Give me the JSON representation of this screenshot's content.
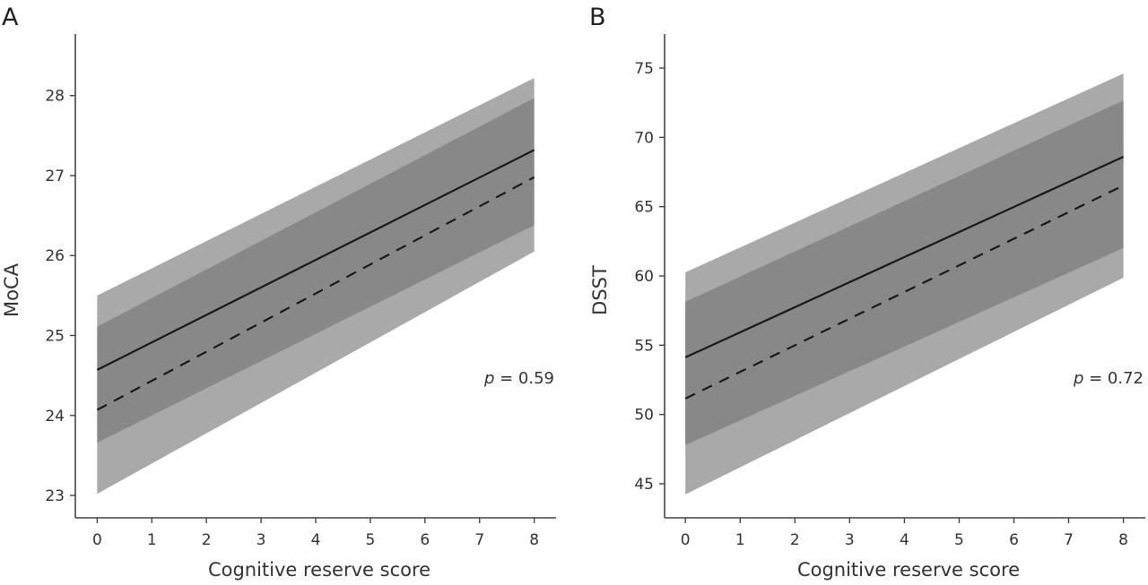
{
  "chart_data": [
    {
      "type": "line",
      "panel_label": "A",
      "title": "",
      "xlabel": "Cognitive reserve score",
      "ylabel": "MoCA",
      "xlim": [
        -0.4,
        8.4
      ],
      "ylim": [
        22.72,
        28.77
      ],
      "xticks": [
        0,
        1,
        2,
        3,
        4,
        5,
        6,
        7,
        8
      ],
      "xtick_labels": [
        "0",
        "1",
        "2",
        "3",
        "4",
        "5",
        "6",
        "7",
        "8"
      ],
      "yticks": [
        23,
        24,
        25,
        26,
        27,
        28
      ],
      "ytick_labels": [
        "23",
        "24",
        "25",
        "26",
        "27",
        "28"
      ],
      "grid": false,
      "x": [
        0,
        8
      ],
      "series": [
        {
          "name": "solid line",
          "style": "solid",
          "values": [
            24.57,
            27.32
          ]
        },
        {
          "name": "dashed line",
          "style": "dashed",
          "values": [
            24.07,
            26.98
          ]
        }
      ],
      "bands": [
        {
          "name": "outer interval",
          "color": "#a9a9a9",
          "lower": [
            23.02,
            26.05
          ],
          "upper": [
            25.5,
            28.22
          ]
        },
        {
          "name": "inner interval",
          "color": "#888888",
          "lower": [
            23.66,
            26.38
          ],
          "upper": [
            25.11,
            27.97
          ]
        }
      ],
      "annotation": {
        "p_symbol": "p",
        "p_text": " = 0.59",
        "position": "right-middle"
      }
    },
    {
      "type": "line",
      "panel_label": "B",
      "title": "",
      "xlabel": "Cognitive reserve score",
      "ylabel": "DSST",
      "xlim": [
        -0.38,
        8.4
      ],
      "ylim": [
        42.54,
        77.46
      ],
      "xticks": [
        0,
        1,
        2,
        3,
        4,
        5,
        6,
        7,
        8
      ],
      "xtick_labels": [
        "0",
        "1",
        "2",
        "3",
        "4",
        "5",
        "6",
        "7",
        "8"
      ],
      "yticks": [
        45,
        50,
        55,
        60,
        65,
        70,
        75
      ],
      "ytick_labels": [
        "45",
        "50",
        "55",
        "60",
        "65",
        "70",
        "75"
      ],
      "grid": false,
      "x": [
        0,
        8
      ],
      "series": [
        {
          "name": "solid line",
          "style": "solid",
          "values": [
            54.12,
            68.6
          ]
        },
        {
          "name": "dashed line",
          "style": "dashed",
          "values": [
            51.15,
            66.53
          ]
        }
      ],
      "bands": [
        {
          "name": "outer interval",
          "color": "#a9a9a9",
          "lower": [
            44.23,
            59.87
          ],
          "upper": [
            60.26,
            74.61
          ]
        },
        {
          "name": "inner interval",
          "color": "#888888",
          "lower": [
            47.79,
            62.01
          ],
          "upper": [
            58.13,
            72.67
          ]
        }
      ],
      "annotation": {
        "p_symbol": "p",
        "p_text": " = 0.72",
        "position": "right-middle"
      }
    }
  ]
}
